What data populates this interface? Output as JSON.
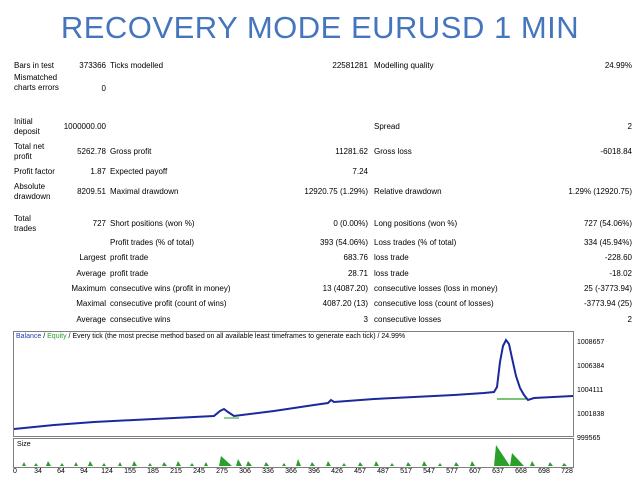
{
  "title": "RECOVERY MODE  EURUSD 1 MIN",
  "report": {
    "bars_label": "Bars in test",
    "bars_value": "373366",
    "ticks_label": "Ticks modelled",
    "ticks_value": "22581281",
    "quality_label": "Modelling quality",
    "quality_value": "24.99%",
    "mismatch_label": "Mismatched charts errors",
    "mismatch_value": "0",
    "deposit_label": "Initial deposit",
    "deposit_value": "1000000.00",
    "spread_label": "Spread",
    "spread_value": "2",
    "net_label": "Total net profit",
    "net_value": "5262.78",
    "gross_profit_label": "Gross profit",
    "gross_profit_value": "11281.62",
    "gross_loss_label": "Gross loss",
    "gross_loss_value": "-6018.84",
    "pf_label": "Profit factor",
    "pf_value": "1.87",
    "payoff_label": "Expected payoff",
    "payoff_value": "7.24",
    "abs_dd_label": "Absolute drawdown",
    "abs_dd_value": "8209.51",
    "max_dd_label": "Maximal drawdown",
    "max_dd_value": "12920.75 (1.29%)",
    "rel_dd_label": "Relative drawdown",
    "rel_dd_value": "1.29% (12920.75)",
    "trades_label": "Total trades",
    "trades_value": "727",
    "short_label": "Short positions (won %)",
    "short_value": "0 (0.00%)",
    "long_label": "Long positions (won %)",
    "long_value": "727 (54.06%)",
    "pt_label": "Profit trades (% of total)",
    "pt_value": "393 (54.06%)",
    "lt_label": "Loss trades (% of total)",
    "lt_value": "334 (45.94%)",
    "largest_label": "Largest",
    "lp_label": "profit trade",
    "lp_value": "683.76",
    "ll_label": "loss trade",
    "ll_value": "-228.60",
    "average_label": "Average",
    "ap_label": "profit trade",
    "ap_value": "28.71",
    "al_label": "loss trade",
    "al_value": "-18.02",
    "maximum_label": "Maximum",
    "mcw_label": "consecutive wins (profit in money)",
    "mcw_value": "13 (4087.20)",
    "mcl_label": "consecutive losses (loss in money)",
    "mcl_value": "25 (-3773.94)",
    "maximal_label": "Maximal",
    "mcp_label": "consecutive profit (count of wins)",
    "mcp_value": "4087.20 (13)",
    "mclc_label": "consecutive loss (count of losses)",
    "mclc_value": "-3773.94 (25)",
    "average2_label": "Average",
    "acw_label": "consecutive wins",
    "acw_value": "3",
    "acl_label": "consecutive losses",
    "acl_value": "2"
  },
  "chart": {
    "header_balance": "Balance",
    "header_sep": " / ",
    "header_equity": "Equity",
    "header_rest": " / Every tick (the most precise method based on all available least timeframes to generate each tick) / 24.99%",
    "y_labels": [
      "1008657",
      "1006384",
      "1004111",
      "1001838",
      "999565"
    ],
    "x_labels": [
      "0",
      "34",
      "64",
      "94",
      "124",
      "155",
      "185",
      "215",
      "245",
      "275",
      "306",
      "336",
      "366",
      "396",
      "426",
      "457",
      "487",
      "517",
      "547",
      "577",
      "607",
      "637",
      "668",
      "698",
      "728"
    ],
    "size_label": "Size",
    "colors": {
      "balance": "#1a2a9c",
      "equity": "#2aa02a",
      "size_bars": "#2aa02a",
      "title": "#4575bd"
    }
  }
}
